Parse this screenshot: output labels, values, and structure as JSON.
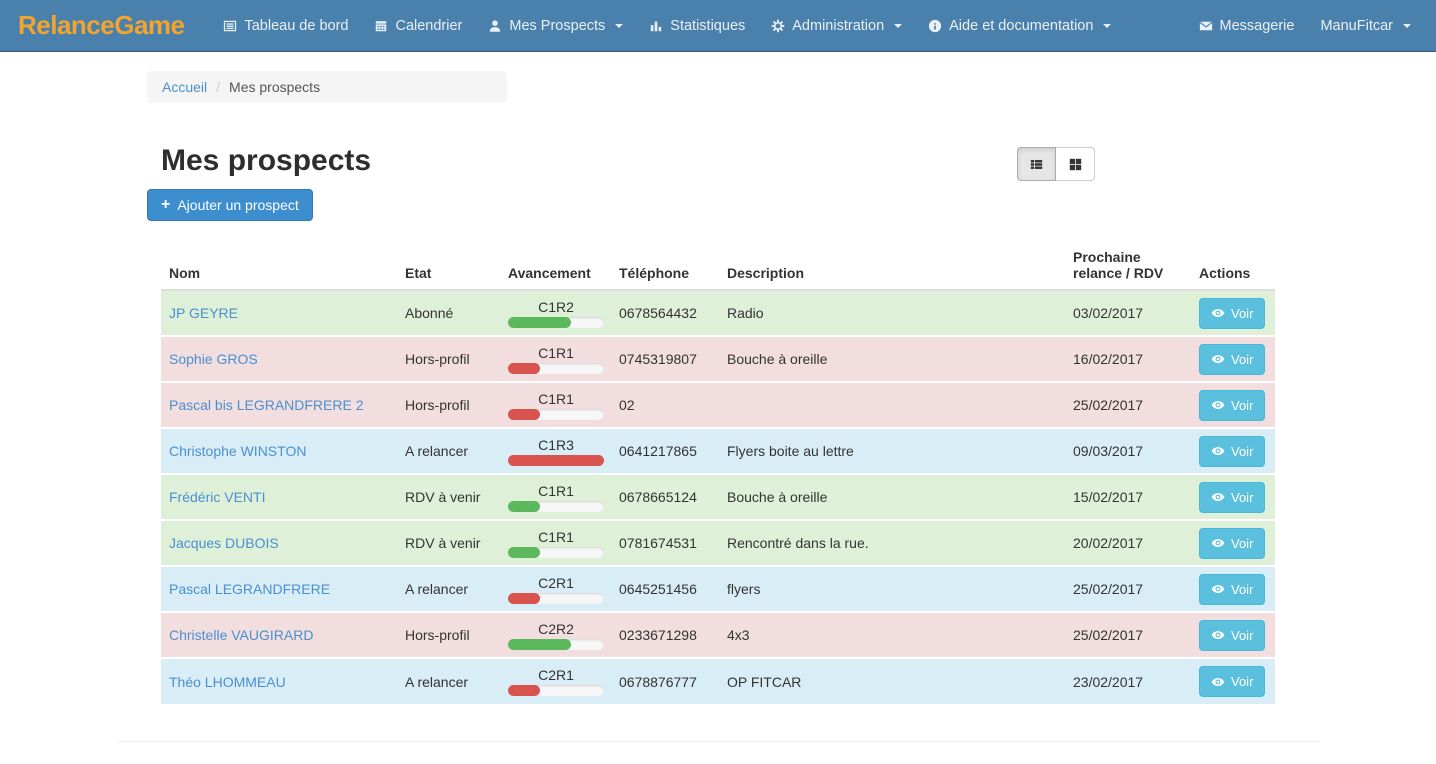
{
  "navbar": {
    "brand": "RelanceGame",
    "items": [
      {
        "label": "Tableau de bord",
        "icon": "list-alt-icon",
        "caret": false
      },
      {
        "label": "Calendrier",
        "icon": "calendar-icon",
        "caret": false
      },
      {
        "label": "Mes Prospects",
        "icon": "user-icon",
        "caret": true
      },
      {
        "label": "Statistiques",
        "icon": "bar-chart-icon",
        "caret": false
      },
      {
        "label": "Administration",
        "icon": "gear-icon",
        "caret": true
      },
      {
        "label": "Aide et documentation",
        "icon": "info-icon",
        "caret": true
      }
    ],
    "right_items": [
      {
        "label": "Messagerie",
        "icon": "envelope-icon",
        "caret": false
      },
      {
        "label": "ManuFitcar",
        "icon": null,
        "caret": true
      }
    ]
  },
  "breadcrumb": {
    "home": "Accueil",
    "separator": "/",
    "current": "Mes prospects"
  },
  "page": {
    "title": "Mes prospects",
    "add_button_icon": "+",
    "add_button_label": "Ajouter un prospect"
  },
  "view_toggle": {
    "active": "list",
    "buttons": [
      {
        "name": "list",
        "icon": "th-list-icon"
      },
      {
        "name": "grid",
        "icon": "th-large-icon"
      }
    ]
  },
  "table": {
    "headers": [
      "Nom",
      "Etat",
      "Avancement",
      "Téléphone",
      "Description",
      "Prochaine relance / RDV",
      "Actions"
    ],
    "action_label": "Voir",
    "rows": [
      {
        "name": "JP GEYRE",
        "etat": "Abonné",
        "avancement": {
          "label": "C1R2",
          "percent": 66,
          "color": "green"
        },
        "telephone": "0678564432",
        "description": "Radio",
        "date": "03/02/2017",
        "row_color": "green"
      },
      {
        "name": "Sophie GROS",
        "etat": "Hors-profil",
        "avancement": {
          "label": "C1R1",
          "percent": 33,
          "color": "red"
        },
        "telephone": "0745319807",
        "description": "Bouche à oreille",
        "date": "16/02/2017",
        "row_color": "red"
      },
      {
        "name": "Pascal bis LEGRANDFRERE 2",
        "etat": "Hors-profil",
        "avancement": {
          "label": "C1R1",
          "percent": 33,
          "color": "red"
        },
        "telephone": "02",
        "description": "",
        "date": "25/02/2017",
        "row_color": "red"
      },
      {
        "name": "Christophe WINSTON",
        "etat": "A relancer",
        "avancement": {
          "label": "C1R3",
          "percent": 100,
          "color": "red"
        },
        "telephone": "0641217865",
        "description": "Flyers boite au lettre",
        "date": "09/03/2017",
        "row_color": "blue"
      },
      {
        "name": "Frédéric VENTI",
        "etat": "RDV à venir",
        "avancement": {
          "label": "C1R1",
          "percent": 33,
          "color": "green"
        },
        "telephone": "0678665124",
        "description": "Bouche à oreille",
        "date": "15/02/2017",
        "row_color": "green"
      },
      {
        "name": "Jacques DUBOIS",
        "etat": "RDV à venir",
        "avancement": {
          "label": "C1R1",
          "percent": 33,
          "color": "green"
        },
        "telephone": "0781674531",
        "description": "Rencontré dans la rue.",
        "date": "20/02/2017",
        "row_color": "green"
      },
      {
        "name": "Pascal LEGRANDFRERE",
        "etat": "A relancer",
        "avancement": {
          "label": "C2R1",
          "percent": 33,
          "color": "red"
        },
        "telephone": "0645251456",
        "description": "flyers",
        "date": "25/02/2017",
        "row_color": "blue"
      },
      {
        "name": "Christelle VAUGIRARD",
        "etat": "Hors-profil",
        "avancement": {
          "label": "C2R2",
          "percent": 66,
          "color": "green"
        },
        "telephone": "0233671298",
        "description": "4x3",
        "date": "25/02/2017",
        "row_color": "red"
      },
      {
        "name": "Théo LHOMMEAU",
        "etat": "A relancer",
        "avancement": {
          "label": "C2R1",
          "percent": 33,
          "color": "red"
        },
        "telephone": "0678876777",
        "description": "OP FITCAR",
        "date": "23/02/2017",
        "row_color": "blue"
      }
    ]
  },
  "colors": {
    "navbar_bg": "#4a80ac",
    "brand_orange": "#f2a42c",
    "link_blue": "#4a90d0",
    "primary_button": "#3d8ecf",
    "primary_button_border": "#3579b5",
    "info_button": "#5bc0de",
    "info_button_border": "#46b8da",
    "bar_green": "#5cb85c",
    "bar_red": "#d9534f",
    "row_green": "#dff0d8",
    "row_red": "#f2dede",
    "row_blue": "#d9edf7"
  }
}
